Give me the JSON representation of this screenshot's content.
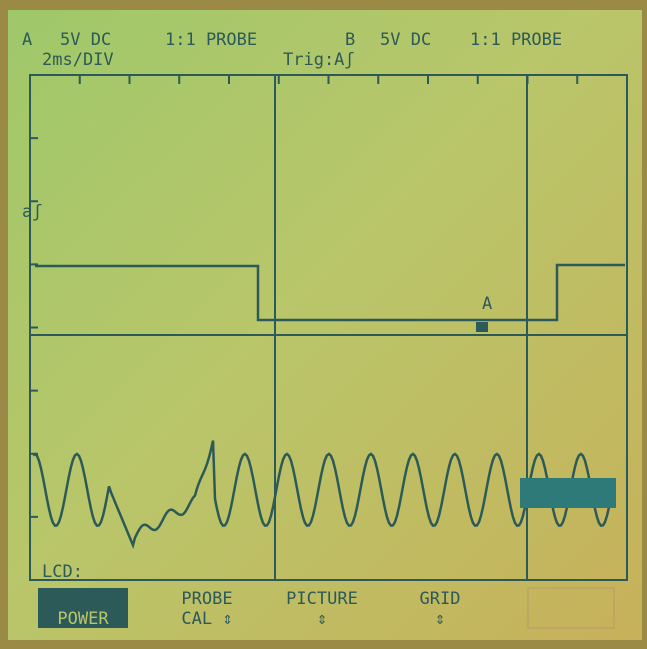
{
  "header": {
    "channel_a": "A",
    "a_coupling": "5V DC",
    "a_probe": "1:1 PROBE",
    "channel_b": "B",
    "b_coupling": "5V DC",
    "b_probe": "1:1 PROBE",
    "timebase": "2ms/DIV",
    "trigger": "Trig:Aʃ"
  },
  "markers": {
    "trace_a": "aʃ",
    "cursor": "A"
  },
  "status": "LCD:",
  "menu": [
    {
      "line2": "POWER"
    },
    {
      "line1": "PROBE",
      "line2": "CAL ⇕"
    },
    {
      "line1": "PICTURE",
      "line2": "⇕"
    },
    {
      "line1": "GRID",
      "line2": "⇕"
    }
  ]
}
